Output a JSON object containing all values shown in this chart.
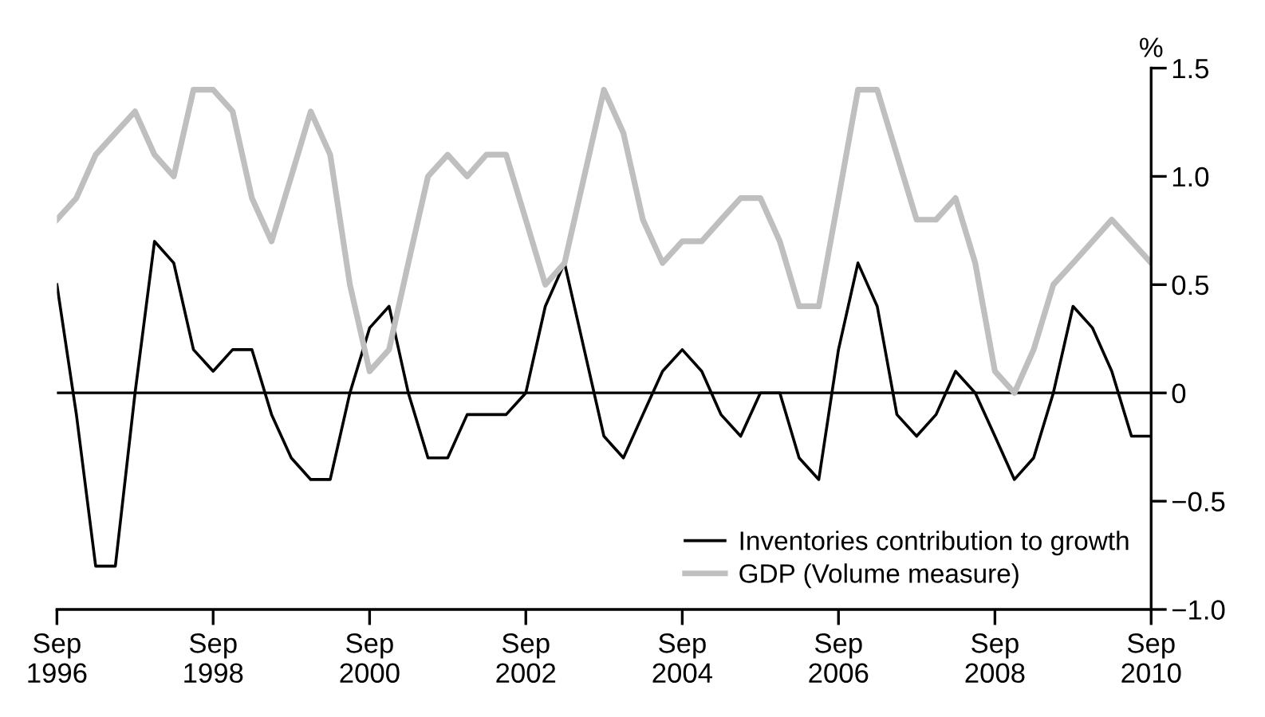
{
  "chart_data": {
    "type": "line",
    "ylabel": "%",
    "x": [
      "1996-09",
      "1996-12",
      "1997-03",
      "1997-06",
      "1997-09",
      "1997-12",
      "1998-03",
      "1998-06",
      "1998-09",
      "1998-12",
      "1999-03",
      "1999-06",
      "1999-09",
      "1999-12",
      "2000-03",
      "2000-06",
      "2000-09",
      "2000-12",
      "2001-03",
      "2001-06",
      "2001-09",
      "2001-12",
      "2002-03",
      "2002-06",
      "2002-09",
      "2002-12",
      "2003-03",
      "2003-06",
      "2003-09",
      "2003-12",
      "2004-03",
      "2004-06",
      "2004-09",
      "2004-12",
      "2005-03",
      "2005-06",
      "2005-09",
      "2005-12",
      "2006-03",
      "2006-06",
      "2006-09",
      "2006-12",
      "2007-03",
      "2007-06",
      "2007-09",
      "2007-12",
      "2008-03",
      "2008-06",
      "2008-09",
      "2008-12",
      "2009-03",
      "2009-06",
      "2009-09",
      "2009-12",
      "2010-03",
      "2010-06",
      "2010-09"
    ],
    "series": [
      {
        "name": "Inventories contribution to growth",
        "color": "#000000",
        "values": [
          0.5,
          -0.1,
          -0.8,
          -0.8,
          0.0,
          0.7,
          0.6,
          0.2,
          0.1,
          0.2,
          0.2,
          -0.1,
          -0.3,
          -0.4,
          -0.4,
          0.0,
          0.3,
          0.4,
          0.0,
          -0.3,
          -0.3,
          -0.1,
          -0.1,
          -0.1,
          0.0,
          0.4,
          0.6,
          0.2,
          -0.2,
          -0.3,
          -0.1,
          0.1,
          0.2,
          0.1,
          -0.1,
          -0.2,
          0.0,
          0.0,
          -0.3,
          -0.4,
          0.2,
          0.6,
          0.4,
          -0.1,
          -0.2,
          -0.1,
          0.1,
          0.0,
          -0.2,
          -0.4,
          -0.3,
          0.0,
          0.4,
          0.3,
          0.1,
          -0.2,
          -0.2
        ]
      },
      {
        "name": "GDP (Volume measure)",
        "color": "#bfbfbf",
        "values": [
          0.8,
          0.9,
          1.1,
          1.2,
          1.3,
          1.1,
          1.0,
          1.4,
          1.4,
          1.3,
          0.9,
          0.7,
          1.0,
          1.3,
          1.1,
          0.5,
          0.1,
          0.2,
          0.6,
          1.0,
          1.1,
          1.0,
          1.1,
          1.1,
          0.8,
          0.5,
          0.6,
          1.0,
          1.4,
          1.2,
          0.8,
          0.6,
          0.7,
          0.7,
          0.8,
          0.9,
          0.9,
          0.7,
          0.4,
          0.4,
          0.9,
          1.4,
          1.4,
          1.1,
          0.8,
          0.8,
          0.9,
          0.6,
          0.1,
          0.0,
          0.2,
          0.5,
          0.6,
          0.7,
          0.8,
          0.7,
          0.6
        ]
      }
    ],
    "xlim": [
      "1996-09",
      "2010-09"
    ],
    "xticks": [
      {
        "value": "1996-09",
        "label": "Sep\n1996"
      },
      {
        "value": "1998-09",
        "label": "Sep\n1998"
      },
      {
        "value": "2000-09",
        "label": "Sep\n2000"
      },
      {
        "value": "2002-09",
        "label": "Sep\n2002"
      },
      {
        "value": "2004-09",
        "label": "Sep\n2004"
      },
      {
        "value": "2006-09",
        "label": "Sep\n2006"
      },
      {
        "value": "2008-09",
        "label": "Sep\n2008"
      },
      {
        "value": "2010-09",
        "label": "Sep\n2010"
      }
    ],
    "ylim": [
      -1.0,
      1.5
    ],
    "yticks": [
      {
        "value": -1.0,
        "label": "−1.0"
      },
      {
        "value": -0.5,
        "label": "−0.5"
      },
      {
        "value": 0,
        "label": "0"
      },
      {
        "value": 0.5,
        "label": "0.5"
      },
      {
        "value": 1.0,
        "label": "1.0"
      },
      {
        "value": 1.5,
        "label": "1.5"
      }
    ],
    "ref_lines": [
      {
        "axis": "y",
        "value": 0,
        "color": "#000000"
      }
    ],
    "legend": "bottom right",
    "grid": false,
    "marker": "none",
    "line_style": "solid"
  }
}
